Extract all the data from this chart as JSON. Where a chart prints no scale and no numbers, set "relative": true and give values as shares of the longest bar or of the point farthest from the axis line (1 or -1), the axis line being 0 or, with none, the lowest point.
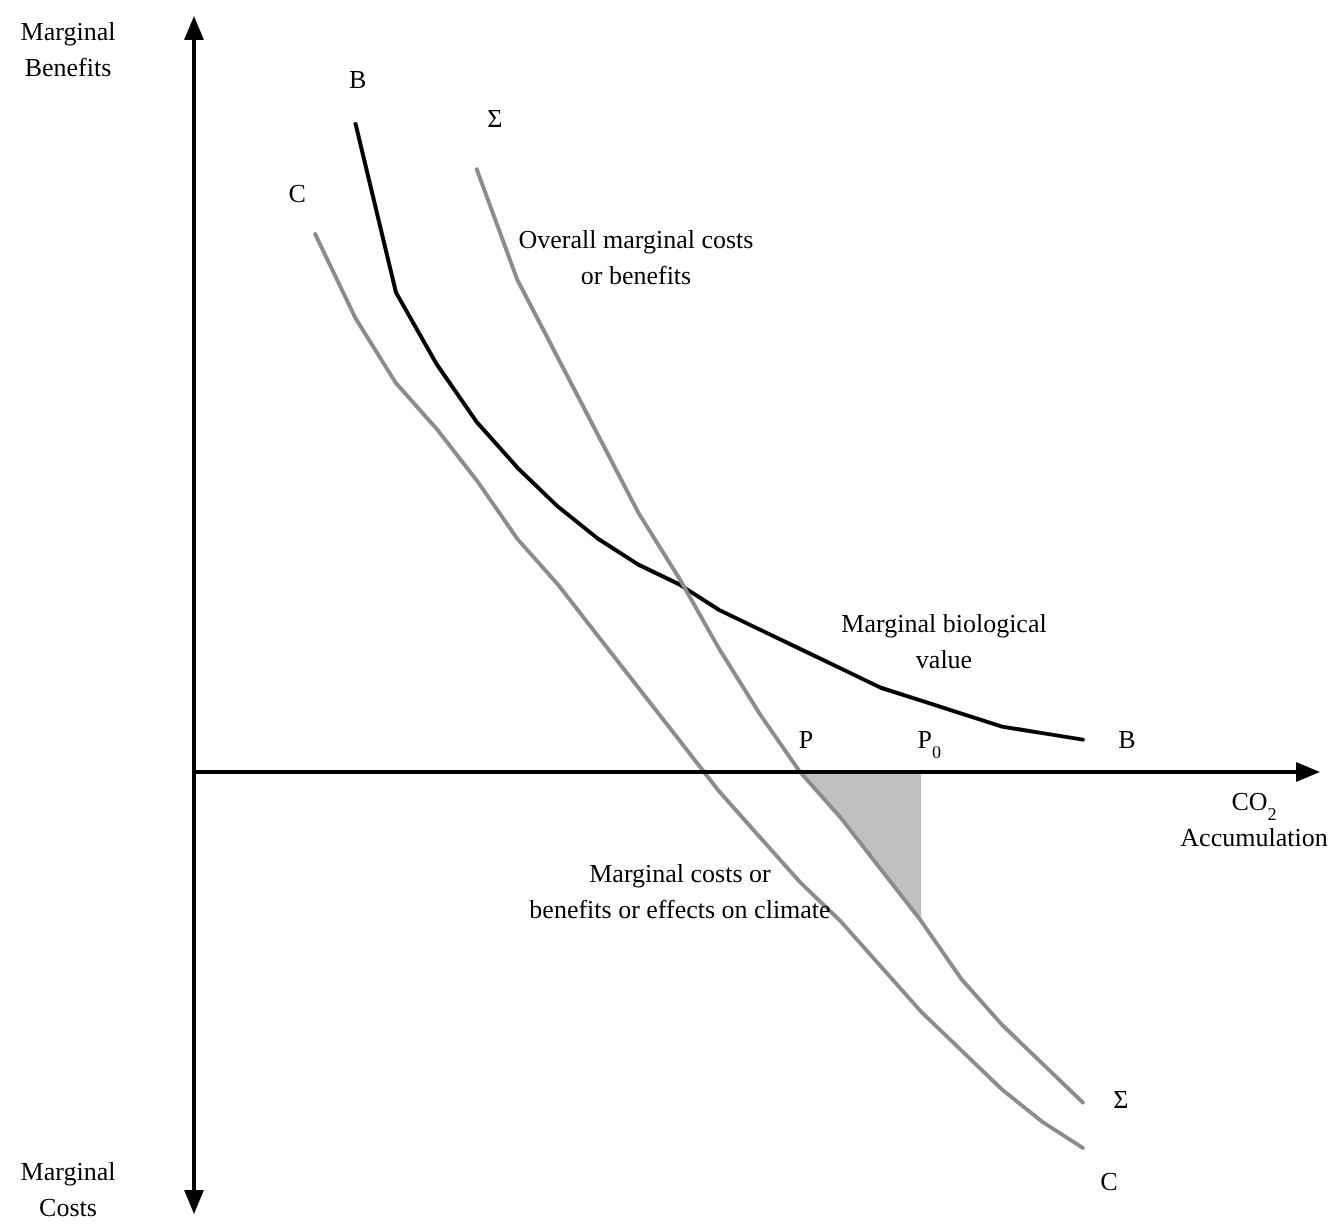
{
  "chart_data": {
    "type": "line",
    "relative": true,
    "xlabel": "CO$_{2}$\nAccumulation",
    "ylabel": "Marginal\nBenefits",
    "categories": [
      null,
      null,
      null,
      null,
      null,
      null,
      null,
      null,
      null,
      null,
      null,
      null,
      null,
      null,
      null,
      null,
      null,
      null,
      null,
      null,
      null,
      null,
      null,
      null,
      null,
      null,
      null,
      null
    ],
    "series": [
      {
        "type": "area",
        "color": "#c0c0c0",
        "values": [
          null,
          null,
          null,
          null,
          null,
          null,
          null,
          null,
          null,
          null,
          null,
          null,
          null,
          null,
          null,
          0,
          -0.07,
          -0.15,
          -0.23,
          null,
          null,
          null,
          null,
          null,
          null,
          null,
          null,
          null
        ]
      },
      {
        "name": "B",
        "color": "#000000",
        "values": [
          null,
          null,
          null,
          null,
          1,
          0.74,
          0.63,
          0.54,
          0.47,
          0.41,
          0.36,
          0.32,
          0.29,
          0.25,
          0.22,
          0.19,
          0.16,
          0.13,
          0.11,
          0.09,
          0.07,
          0.06,
          0.05,
          null,
          null,
          null,
          null,
          null
        ]
      },
      {
        "name": "Σ",
        "color": "#8c8c8c",
        "values": [
          null,
          null,
          null,
          null,
          null,
          null,
          null,
          0.93,
          0.76,
          0.64,
          0.52,
          0.4,
          0.3,
          0.19,
          0.09,
          0,
          -0.07,
          -0.15,
          -0.23,
          -0.32,
          -0.39,
          -0.45,
          -0.51,
          null,
          null,
          null,
          null,
          null
        ]
      },
      {
        "name": "C",
        "color": "#8c8c8c",
        "values": [
          null,
          null,
          null,
          0.83,
          0.7,
          0.6,
          0.53,
          0.45,
          0.36,
          0.29,
          0.21,
          0.13,
          0.05,
          -0.03,
          -0.1,
          -0.17,
          -0.23,
          -0.3,
          -0.37,
          -0.43,
          -0.49,
          -0.54,
          -0.58,
          null,
          null,
          null,
          null,
          null
        ]
      }
    ],
    "annotations": [
      "Overall marginal costs\nor benefits",
      "Marginal biological\nvalue",
      "Marginal costs or\nbenefits or effects on climate",
      "Marginal\nCosts",
      "P",
      "P$_{0}$"
    ]
  }
}
